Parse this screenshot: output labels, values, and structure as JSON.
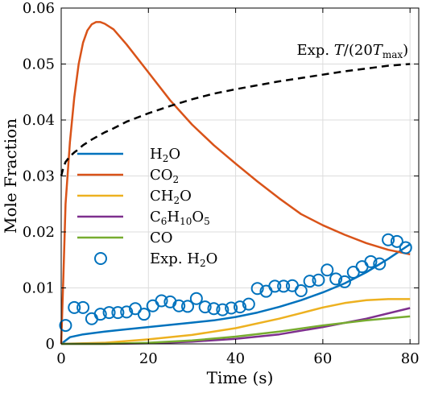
{
  "chart_data": {
    "type": "line",
    "xlabel": "Time (s)",
    "ylabel": "Mole Fraction",
    "xlim": [
      0,
      82
    ],
    "ylim": [
      0,
      0.06
    ],
    "x_ticks": [
      0,
      20,
      40,
      60,
      80
    ],
    "y_ticks": [
      0,
      0.01,
      0.02,
      0.03,
      0.04,
      0.05,
      0.06
    ],
    "x_tick_labels": [
      "0",
      "20",
      "40",
      "60",
      "80"
    ],
    "y_tick_labels": [
      "0",
      "0.01",
      "0.02",
      "0.03",
      "0.04",
      "0.05",
      "0.06"
    ],
    "grid": true,
    "legend_position": "center-left",
    "annotation": {
      "text": "Exp. T/(20T_max)",
      "x": 60,
      "y": 0.0525
    },
    "series": [
      {
        "name": "H₂O",
        "kind": "line",
        "color": "#0072BD",
        "in_legend": true,
        "x": [
          0,
          2,
          5,
          10,
          15,
          20,
          25,
          30,
          35,
          40,
          45,
          50,
          55,
          60,
          65,
          70,
          75,
          80
        ],
        "y": [
          0,
          0.0012,
          0.0017,
          0.0022,
          0.0026,
          0.003,
          0.0034,
          0.0038,
          0.0042,
          0.0048,
          0.0056,
          0.0066,
          0.0078,
          0.0092,
          0.0108,
          0.0128,
          0.0152,
          0.0178
        ]
      },
      {
        "name": "CO₂",
        "kind": "line",
        "color": "#D95319",
        "in_legend": true,
        "x": [
          0,
          0.5,
          1,
          2,
          3,
          4,
          5,
          6,
          7,
          8,
          9,
          10,
          12,
          15,
          20,
          25,
          30,
          35,
          40,
          45,
          50,
          55,
          60,
          65,
          70,
          75,
          80
        ],
        "y": [
          0,
          0.012,
          0.025,
          0.036,
          0.044,
          0.05,
          0.0538,
          0.056,
          0.0571,
          0.0575,
          0.0575,
          0.0572,
          0.0562,
          0.0535,
          0.0485,
          0.0435,
          0.0392,
          0.0355,
          0.0322,
          0.029,
          0.026,
          0.0232,
          0.0212,
          0.0195,
          0.018,
          0.0168,
          0.016
        ]
      },
      {
        "name": "CH₂O",
        "kind": "line",
        "color": "#EDB120",
        "in_legend": true,
        "x": [
          0,
          10,
          20,
          30,
          40,
          50,
          55,
          60,
          65,
          70,
          75,
          80
        ],
        "y": [
          0,
          0.0002,
          0.0008,
          0.0016,
          0.0028,
          0.0045,
          0.0055,
          0.0065,
          0.0073,
          0.0078,
          0.008,
          0.008
        ]
      },
      {
        "name": "C₆H₁₀O₅",
        "kind": "line",
        "color": "#7E2F8E",
        "in_legend": true,
        "x": [
          0,
          10,
          20,
          30,
          40,
          50,
          60,
          70,
          80
        ],
        "y": [
          0,
          0,
          0.0001,
          0.0004,
          0.0009,
          0.0017,
          0.003,
          0.0045,
          0.0064
        ]
      },
      {
        "name": "CO",
        "kind": "line",
        "color": "#77AC30",
        "in_legend": true,
        "x": [
          0,
          10,
          20,
          30,
          40,
          50,
          60,
          70,
          80
        ],
        "y": [
          0,
          0,
          0.0002,
          0.0006,
          0.0013,
          0.0022,
          0.0033,
          0.0042,
          0.0049
        ]
      },
      {
        "name": "Exp. H₂O",
        "kind": "scatter",
        "color": "#0072BD",
        "in_legend": true,
        "x": [
          1,
          3,
          5,
          7,
          9,
          11,
          13,
          15,
          17,
          19,
          21,
          23,
          25,
          27,
          29,
          31,
          33,
          35,
          37,
          39,
          41,
          43,
          45,
          47,
          49,
          51,
          53,
          55,
          57,
          59,
          61,
          63,
          65,
          67,
          69,
          71,
          73,
          75,
          77,
          79
        ],
        "y": [
          0.0033,
          0.0065,
          0.0065,
          0.0045,
          0.0053,
          0.0056,
          0.0056,
          0.0057,
          0.0063,
          0.0053,
          0.0068,
          0.0077,
          0.0075,
          0.0068,
          0.0067,
          0.0081,
          0.0066,
          0.0063,
          0.0061,
          0.0064,
          0.0066,
          0.0071,
          0.0099,
          0.0094,
          0.0103,
          0.0103,
          0.0104,
          0.0095,
          0.0112,
          0.0114,
          0.0132,
          0.0116,
          0.0111,
          0.0128,
          0.0138,
          0.0147,
          0.0143,
          0.0186,
          0.0183,
          0.0172
        ]
      },
      {
        "name": "Exp. T/(20T_max)",
        "kind": "line",
        "dashed": true,
        "color": "#000000",
        "in_legend": false,
        "x": [
          0,
          0.5,
          1,
          2,
          3,
          4,
          5,
          7,
          10,
          12,
          15,
          20,
          25,
          30,
          35,
          40,
          45,
          50,
          55,
          60,
          65,
          70,
          75,
          80
        ],
        "y": [
          0.03,
          0.0315,
          0.0325,
          0.0335,
          0.0342,
          0.0348,
          0.0355,
          0.0365,
          0.0378,
          0.0385,
          0.0397,
          0.0412,
          0.0425,
          0.0437,
          0.0447,
          0.0455,
          0.0462,
          0.0469,
          0.0475,
          0.0481,
          0.0487,
          0.0492,
          0.0497,
          0.05
        ]
      }
    ]
  }
}
